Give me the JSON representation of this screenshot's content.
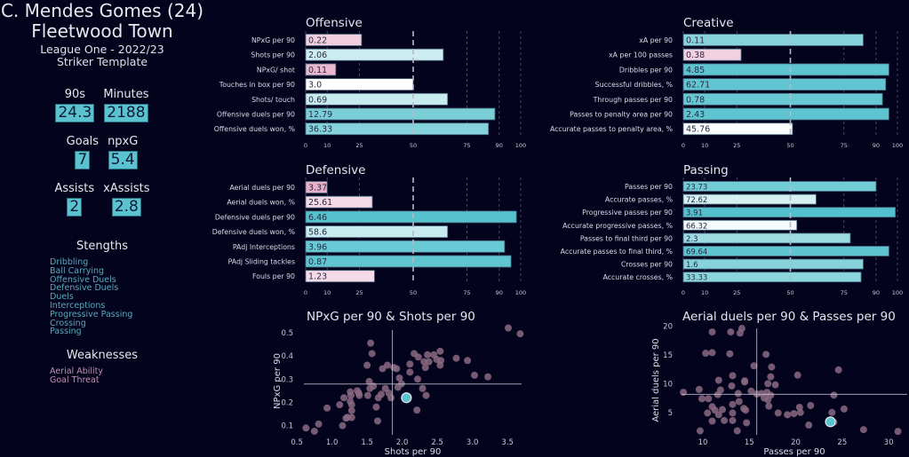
{
  "player": {
    "name": "C. Mendes Gomes (24)",
    "team": "Fleetwood Town",
    "league": "League One - 2022/23",
    "template": "Striker Template"
  },
  "stats": [
    [
      {
        "label": "90s",
        "value": "24.3"
      },
      {
        "label": "Minutes",
        "value": "2188"
      }
    ],
    [
      {
        "label": "Goals",
        "value": "7"
      },
      {
        "label": "npxG",
        "value": "5.4"
      }
    ],
    [
      {
        "label": "Assists",
        "value": "2"
      },
      {
        "label": "xAssists",
        "value": "2.8"
      }
    ]
  ],
  "strengths": {
    "title": "Stengths",
    "items": [
      "Dribbling",
      "Ball Carrying",
      "Offensive Duels",
      "Defensive Duels",
      "Duels",
      "Interceptions",
      "Progressive Passing",
      "Crossing",
      "Passing"
    ]
  },
  "weaknesses": {
    "title": "Weaknesses",
    "items": [
      "Aerial Ability",
      "Goal Threat"
    ]
  },
  "colors": {
    "background": "#03031e",
    "low": "#e29bbd",
    "mid": "#ffffff",
    "high": "#4fbfcc",
    "points": "#8a6a80",
    "highlight": "#5bc3cf"
  },
  "chart_data": [
    {
      "type": "bar",
      "title": "Offensive",
      "xticks": [
        0,
        10,
        25,
        50,
        75,
        90,
        100
      ],
      "xlim": [
        0,
        100
      ],
      "labels": [
        "NPxG per 90",
        "Shots per 90",
        "NPxG/ shot",
        "Touches in box per 90",
        "Shots/ touch",
        "Offensive duels per 90",
        "Offensive duels won, %"
      ],
      "values": [
        "0.22",
        "2.06",
        "0.11",
        "3.0",
        "0.69",
        "12.79",
        "36.33"
      ],
      "percentiles": [
        26,
        64,
        14,
        50,
        66,
        88,
        85
      ]
    },
    {
      "type": "bar",
      "title": "Creative",
      "xticks": [
        0,
        10,
        25,
        50,
        75,
        90,
        100
      ],
      "xlim": [
        0,
        100
      ],
      "labels": [
        "xA per 90",
        "xA per 100 passes",
        "Dribbles per 90",
        "Successful dribbles, %",
        "Through passes per 90",
        "Passes to penalty area per 90",
        "Accurate passes to penalty area, %"
      ],
      "values": [
        "0.11",
        "0.38",
        "4.85",
        "62.71",
        "0.78",
        "2.43",
        "45.76"
      ],
      "percentiles": [
        84,
        27,
        96,
        94.5,
        93,
        96,
        51
      ]
    },
    {
      "type": "bar",
      "title": "Defensive",
      "xticks": [
        0,
        10,
        25,
        50,
        75,
        90,
        100
      ],
      "xlim": [
        0,
        100
      ],
      "labels": [
        "Aerial duels per 90",
        "Aerial duels won, %",
        "Defensive duels per 90",
        "Defensive duels won, %",
        "PAdj Interceptions",
        "PAdj Sliding tackles",
        "Fouls per 90"
      ],
      "values": [
        "3.37",
        "25.61",
        "6.46",
        "58.6",
        "3.96",
        "0.87",
        "1.23"
      ],
      "percentiles": [
        10,
        31,
        98,
        66,
        92.5,
        95.5,
        32
      ]
    },
    {
      "type": "bar",
      "title": "Passing",
      "xticks": [
        0,
        10,
        25,
        50,
        75,
        90,
        100
      ],
      "xlim": [
        0,
        100
      ],
      "labels": [
        "Passes per 90",
        "Accurate passes, %",
        "Progressive passes per 90",
        "Accurate progressive passes, %",
        "Passes to final third per 90",
        "Accurate passes to final third, %",
        "Crosses per 90",
        "Accurate crosses, %"
      ],
      "values": [
        "23.73",
        "72.62",
        "3.91",
        "66.32",
        "2.3",
        "69.64",
        "1.6",
        "33.33"
      ],
      "percentiles": [
        90,
        62,
        99,
        53,
        78,
        96,
        84,
        83
      ]
    },
    {
      "type": "scatter",
      "title": "NPxG per 90 & Shots per 90",
      "xlabel": "Shots per 90",
      "ylabel": "NPxG per 90",
      "xlim": [
        0.6,
        3.7
      ],
      "ylim": [
        0.053,
        0.53
      ],
      "xticks": [
        "0.5",
        "1.0",
        "1.5",
        "2.0",
        "2.5",
        "3.0",
        "3.5"
      ],
      "yticks": [
        "0.1",
        "0.2",
        "0.3",
        "0.4",
        "0.5"
      ],
      "mean_x": 1.86,
      "mean_y": 0.279,
      "highlight": [
        2.06,
        0.22
      ],
      "points": [
        [
          0.63,
          0.09
        ],
        [
          0.75,
          0.076
        ],
        [
          0.81,
          0.107
        ],
        [
          0.93,
          0.176
        ],
        [
          1.11,
          0.19
        ],
        [
          1.15,
          0.1
        ],
        [
          1.17,
          0.22
        ],
        [
          1.2,
          0.132
        ],
        [
          1.22,
          0.136
        ],
        [
          1.26,
          0.245
        ],
        [
          1.27,
          0.23
        ],
        [
          1.26,
          0.205
        ],
        [
          1.28,
          0.19
        ],
        [
          1.28,
          0.165
        ],
        [
          1.28,
          0.135
        ],
        [
          1.36,
          0.25
        ],
        [
          1.38,
          0.24
        ],
        [
          1.39,
          0.23
        ],
        [
          1.5,
          0.36
        ],
        [
          1.51,
          0.23
        ],
        [
          1.53,
          0.29
        ],
        [
          1.54,
          0.26
        ],
        [
          1.55,
          0.455
        ],
        [
          1.57,
          0.41
        ],
        [
          1.59,
          0.27
        ],
        [
          1.63,
          0.18
        ],
        [
          1.65,
          0.12
        ],
        [
          1.66,
          0.22
        ],
        [
          1.7,
          0.235
        ],
        [
          1.72,
          0.345
        ],
        [
          1.76,
          0.26
        ],
        [
          1.79,
          0.36
        ],
        [
          1.81,
          0.24
        ],
        [
          1.84,
          0.22
        ],
        [
          1.88,
          0.35
        ],
        [
          1.92,
          0.345
        ],
        [
          1.94,
          0.265
        ],
        [
          1.96,
          0.305
        ],
        [
          1.99,
          0.28
        ],
        [
          2.11,
          0.365
        ],
        [
          2.11,
          0.33
        ],
        [
          2.17,
          0.41
        ],
        [
          2.23,
          0.395
        ],
        [
          2.22,
          0.3
        ],
        [
          2.21,
          0.167
        ],
        [
          2.29,
          0.26
        ],
        [
          2.31,
          0.375
        ],
        [
          2.33,
          0.35
        ],
        [
          2.34,
          0.23
        ],
        [
          2.36,
          0.405
        ],
        [
          2.38,
          0.375
        ],
        [
          2.45,
          0.405
        ],
        [
          2.49,
          0.385
        ],
        [
          2.54,
          0.42
        ],
        [
          2.55,
          0.38
        ],
        [
          2.54,
          0.36
        ],
        [
          2.77,
          0.39
        ],
        [
          2.93,
          0.38
        ],
        [
          3.03,
          0.317
        ],
        [
          3.22,
          0.31
        ],
        [
          3.51,
          0.52
        ],
        [
          3.68,
          0.495
        ]
      ]
    },
    {
      "type": "scatter",
      "title": "Aerial duels per 90 & Passes per 90",
      "xlabel": "Passes per 90",
      "ylabel": "Aerial duels per 90",
      "xlim": [
        7.7,
        32
      ],
      "ylim": [
        0.8,
        20.4
      ],
      "xticks": [
        "10",
        "15",
        "20",
        "25",
        "30"
      ],
      "yticks": [
        "5",
        "10",
        "15",
        "20"
      ],
      "mean_x": 15.8,
      "mean_y": 8.15,
      "highlight": [
        23.73,
        3.37
      ],
      "points": [
        [
          7.9,
          8.5
        ],
        [
          9.6,
          9.0
        ],
        [
          9.7,
          1.8
        ],
        [
          9.9,
          7.4
        ],
        [
          10.3,
          15.3
        ],
        [
          10.5,
          4.9
        ],
        [
          10.6,
          7.4
        ],
        [
          11.0,
          15.4
        ],
        [
          11.0,
          19.0
        ],
        [
          11.0,
          6.0
        ],
        [
          11.0,
          3.5
        ],
        [
          11.3,
          5.4
        ],
        [
          11.7,
          10.6
        ],
        [
          11.6,
          8.1
        ],
        [
          11.7,
          4.6
        ],
        [
          11.9,
          8.9
        ],
        [
          12.1,
          5.5
        ],
        [
          12.3,
          3.6
        ],
        [
          12.9,
          15.2
        ],
        [
          13.0,
          19.0
        ],
        [
          13.2,
          11.4
        ],
        [
          13.1,
          9.6
        ],
        [
          13.2,
          6.4
        ],
        [
          13.2,
          4.9
        ],
        [
          13.2,
          3.6
        ],
        [
          13.7,
          1.8
        ],
        [
          13.8,
          8.3
        ],
        [
          13.9,
          6.9
        ],
        [
          14.0,
          18.8
        ],
        [
          14.2,
          19.6
        ],
        [
          14.5,
          10.3
        ],
        [
          14.5,
          10.5
        ],
        [
          14.4,
          5.7
        ],
        [
          14.6,
          5.4
        ],
        [
          14.7,
          3.2
        ],
        [
          15.2,
          8.7
        ],
        [
          15.5,
          13.1
        ],
        [
          15.8,
          8.2
        ],
        [
          16.3,
          8.3
        ],
        [
          16.6,
          7.5
        ],
        [
          16.8,
          15.1
        ],
        [
          16.9,
          8.5
        ],
        [
          17.0,
          10.0
        ],
        [
          17.0,
          7.2
        ],
        [
          17.1,
          6.1
        ],
        [
          17.3,
          8.0
        ],
        [
          17.3,
          11.2
        ],
        [
          17.4,
          12.9
        ],
        [
          17.8,
          9.8
        ],
        [
          18.1,
          4.9
        ],
        [
          19.1,
          4.6
        ],
        [
          19.8,
          4.8
        ],
        [
          20.2,
          11.5
        ],
        [
          20.4,
          5.9
        ],
        [
          20.5,
          5.0
        ],
        [
          21.4,
          2.8
        ],
        [
          21.6,
          6.2
        ],
        [
          24.1,
          8.0
        ],
        [
          23.9,
          5.0
        ],
        [
          24.1,
          3.3
        ],
        [
          24.6,
          12.4
        ],
        [
          25.2,
          5.6
        ],
        [
          27.3,
          2.0
        ],
        [
          31.0,
          1.7
        ]
      ]
    }
  ]
}
